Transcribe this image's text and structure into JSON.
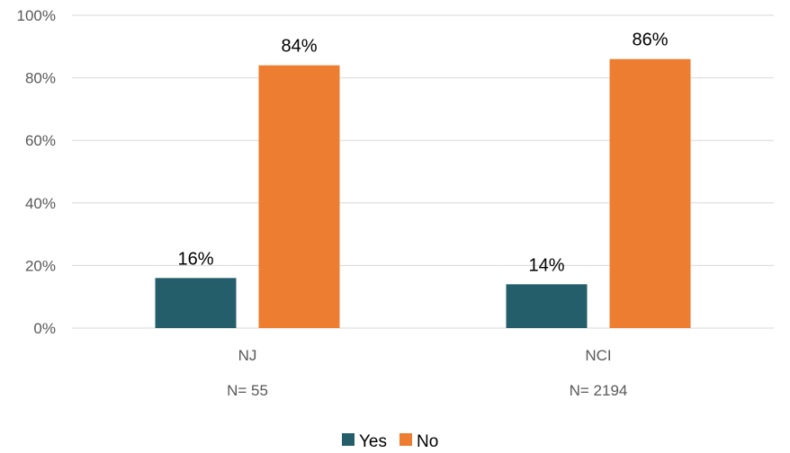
{
  "chart_data": {
    "type": "bar",
    "categories": [
      "NJ",
      "NCI"
    ],
    "category_sublabels": [
      "N= 55",
      "N= 2194"
    ],
    "series": [
      {
        "name": "Yes",
        "values": [
          16,
          14
        ],
        "labels": [
          "16%",
          "14%"
        ],
        "color": "#255e6b"
      },
      {
        "name": "No",
        "values": [
          84,
          86
        ],
        "labels": [
          "84%",
          "86%"
        ],
        "color": "#ed7d31"
      }
    ],
    "y_ticks": [
      0,
      20,
      40,
      60,
      80,
      100
    ],
    "y_tick_labels": [
      "0%",
      "20%",
      "40%",
      "60%",
      "80%",
      "100%"
    ],
    "ylim": [
      0,
      100
    ],
    "grid": true,
    "legend_position": "bottom"
  }
}
